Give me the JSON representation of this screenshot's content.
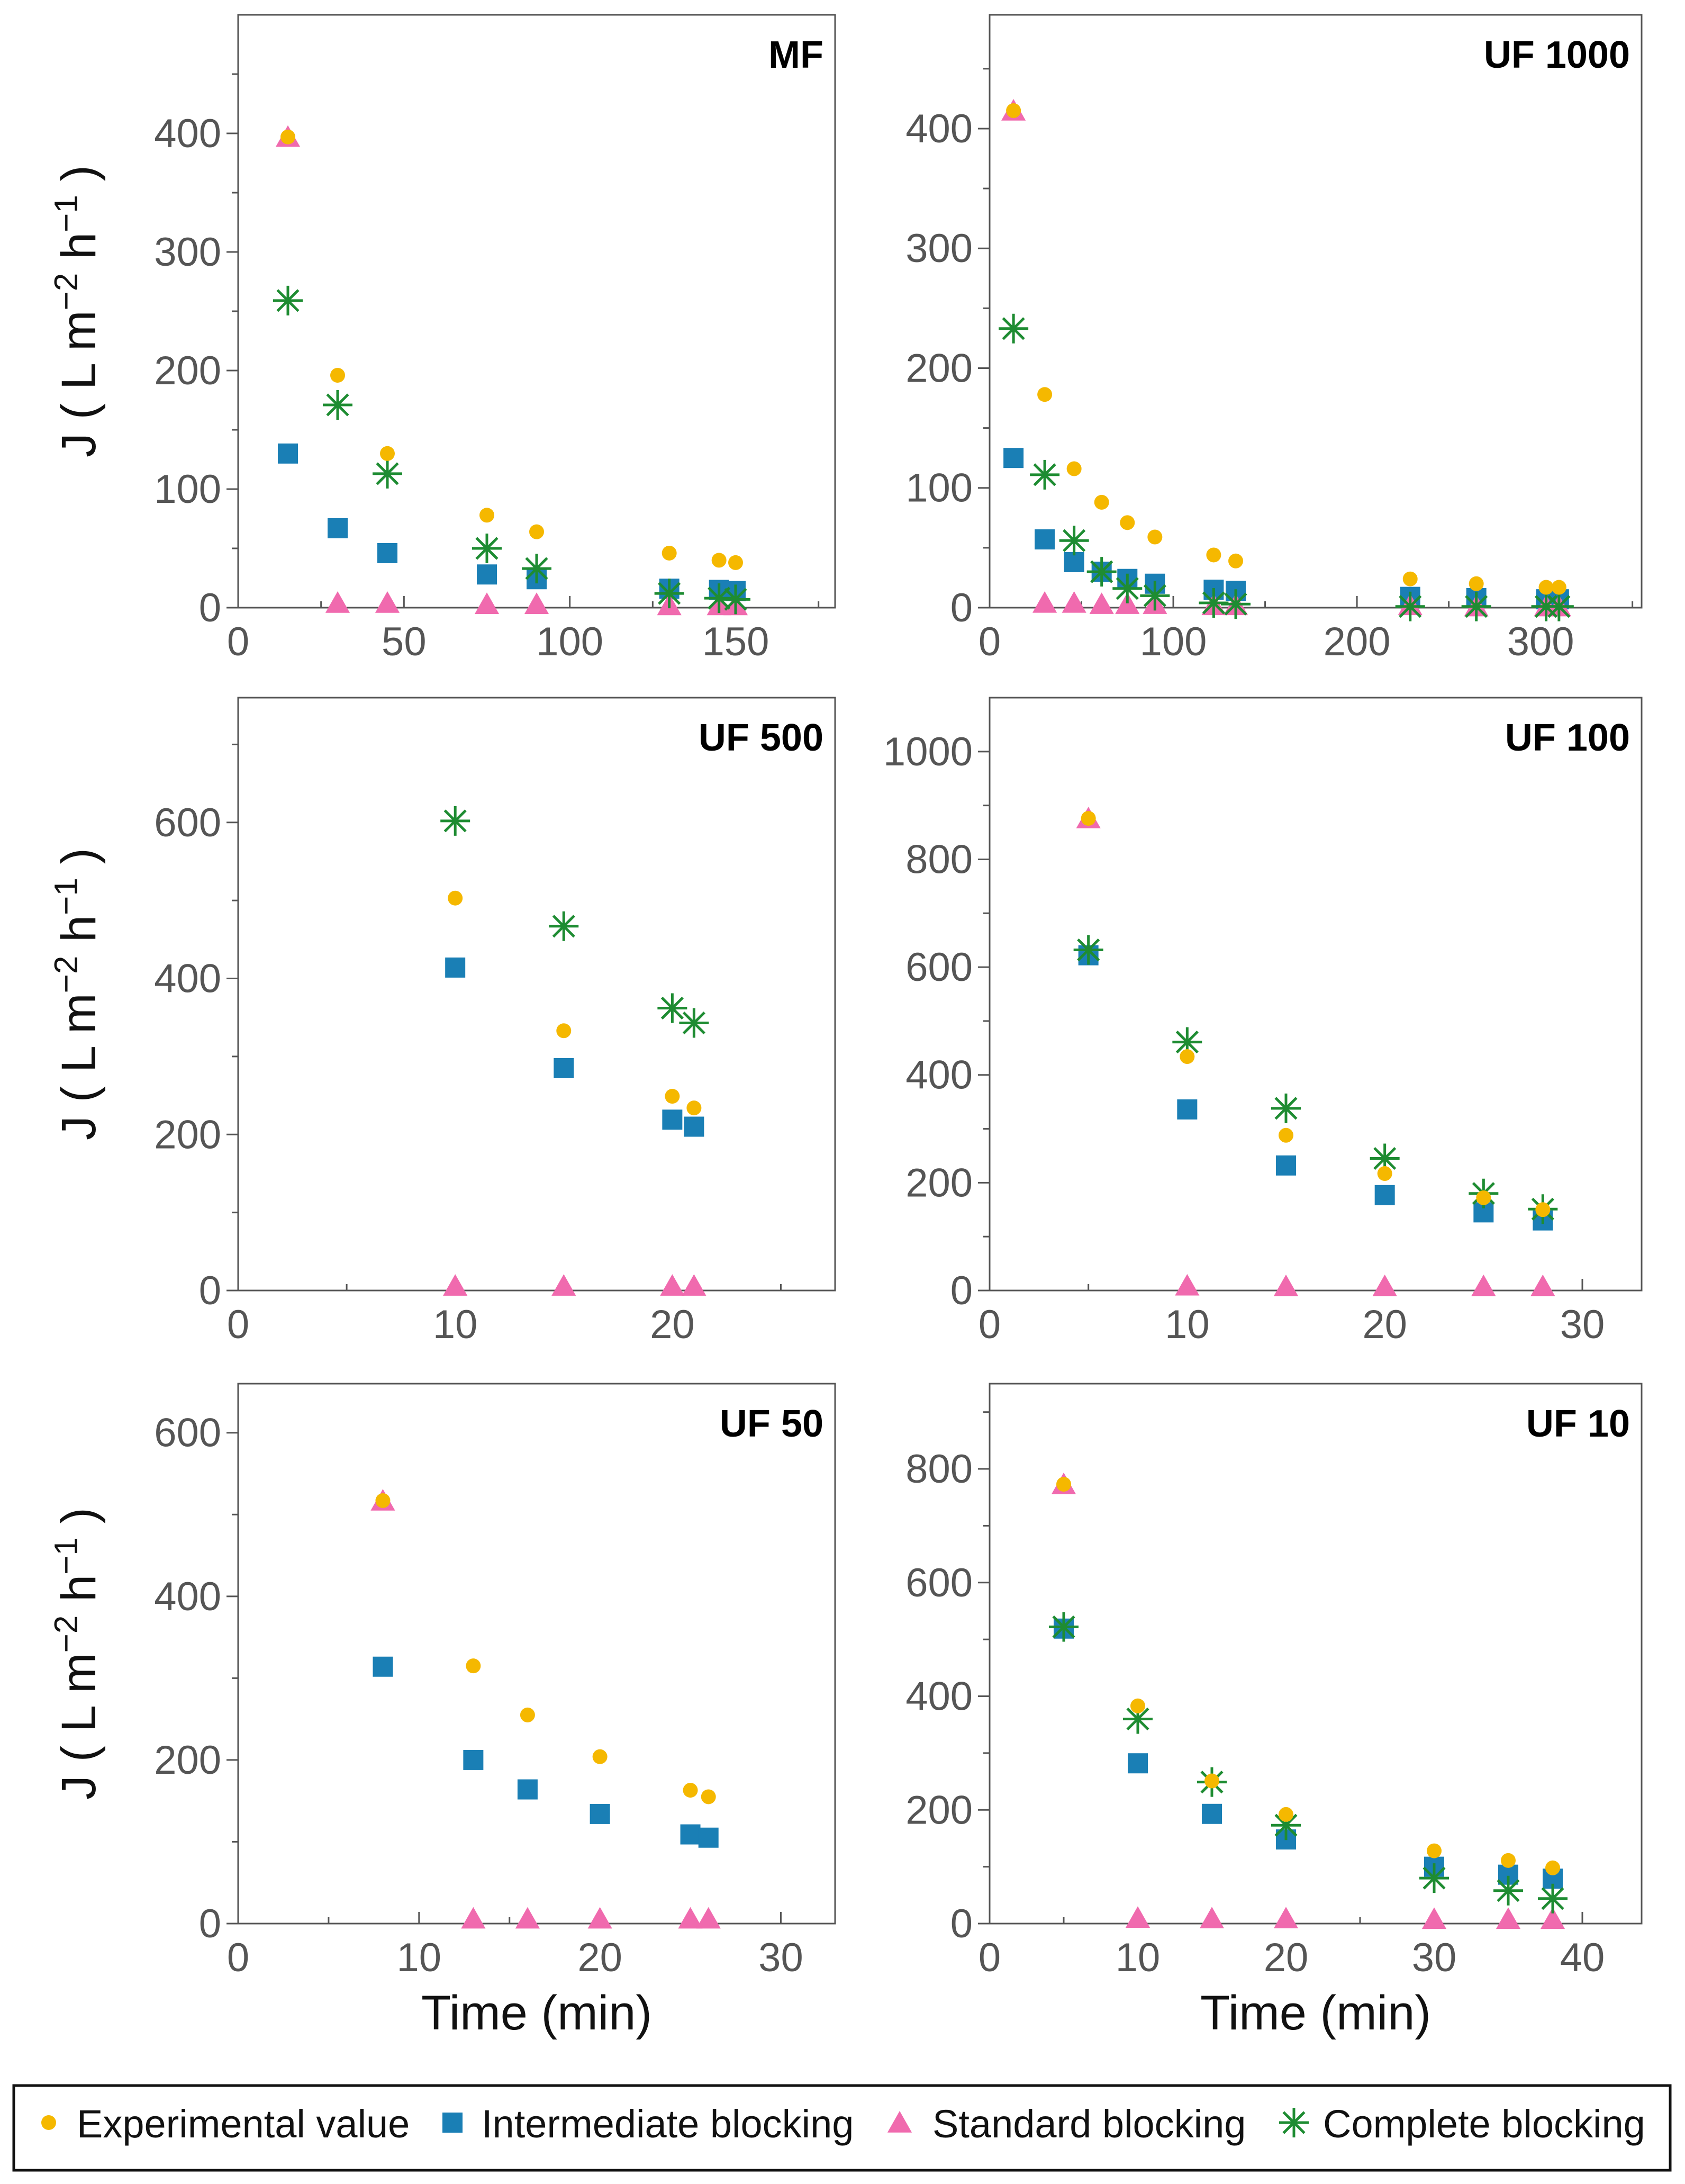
{
  "colors": {
    "experimental": "#F5B800",
    "intermediate": "#1A7FB5",
    "standard": "#F06AAE",
    "complete": "#1E8C32"
  },
  "legend": {
    "items": [
      {
        "key": "experimental",
        "label": "Experimental value",
        "marker": "circle"
      },
      {
        "key": "intermediate",
        "label": "Intermediate blocking",
        "marker": "square"
      },
      {
        "key": "standard",
        "label": "Standard blocking",
        "marker": "triangle"
      },
      {
        "key": "complete",
        "label": "Complete blocking",
        "marker": "asterisk"
      }
    ]
  },
  "chart_data": [
    {
      "type": "scatter",
      "title": "MF",
      "ylabel": "J ( L m−2 h−1 )",
      "xlabel": "",
      "xlim": [
        0,
        180
      ],
      "ylim": [
        0,
        500
      ],
      "xticks": [
        0,
        50,
        100,
        150
      ],
      "xminor": [
        25,
        75,
        125,
        175
      ],
      "yticks": [
        0,
        100,
        200,
        300,
        400
      ],
      "yminor": [
        50,
        150,
        250,
        350,
        450
      ],
      "series": [
        {
          "name": "Experimental value",
          "key": "experimental",
          "x": [
            15,
            30,
            45,
            75,
            90,
            130,
            145,
            150
          ],
          "y": [
            397,
            196,
            130,
            78,
            64,
            46,
            40,
            38
          ]
        },
        {
          "name": "Intermediate blocking",
          "key": "intermediate",
          "x": [
            15,
            30,
            45,
            75,
            90,
            130,
            145,
            150
          ],
          "y": [
            130,
            67,
            46,
            28,
            24,
            16,
            15,
            14
          ]
        },
        {
          "name": "Standard blocking",
          "key": "standard",
          "x": [
            15,
            30,
            45,
            75,
            90,
            130,
            145,
            150
          ],
          "y": [
            397,
            4,
            4,
            3,
            3,
            2,
            2,
            2
          ]
        },
        {
          "name": "Complete blocking",
          "key": "complete",
          "x": [
            15,
            30,
            45,
            75,
            90,
            130,
            145,
            150
          ],
          "y": [
            259,
            171,
            113,
            50,
            33,
            12,
            8,
            7
          ]
        }
      ]
    },
    {
      "type": "scatter",
      "title": "UF 1000",
      "ylabel": "",
      "xlabel": "",
      "xlim": [
        0,
        355
      ],
      "ylim": [
        0,
        495
      ],
      "xticks": [
        0,
        100,
        200,
        300
      ],
      "xminor": [
        50,
        150,
        250,
        350
      ],
      "yticks": [
        0,
        100,
        200,
        300,
        400
      ],
      "yminor": [
        50,
        150,
        250,
        350,
        450
      ],
      "series": [
        {
          "name": "Experimental value",
          "key": "experimental",
          "x": [
            13,
            30,
            46,
            61,
            75,
            90,
            122,
            134,
            229,
            265,
            303,
            310
          ],
          "y": [
            415,
            178,
            116,
            88,
            71,
            59,
            44,
            39,
            24,
            20,
            17,
            17
          ]
        },
        {
          "name": "Intermediate blocking",
          "key": "intermediate",
          "x": [
            13,
            30,
            46,
            61,
            75,
            90,
            122,
            134,
            229,
            265,
            303,
            310
          ],
          "y": [
            125,
            57,
            38,
            30,
            24,
            20,
            15,
            14,
            9,
            8,
            7,
            7
          ]
        },
        {
          "name": "Standard blocking",
          "key": "standard",
          "x": [
            13,
            30,
            46,
            61,
            75,
            90,
            122,
            134,
            229,
            265,
            303,
            310
          ],
          "y": [
            415,
            4,
            4,
            3,
            3,
            3,
            2,
            2,
            2,
            1,
            1,
            1
          ]
        },
        {
          "name": "Complete blocking",
          "key": "complete",
          "x": [
            13,
            30,
            46,
            61,
            75,
            90,
            122,
            134,
            229,
            265,
            303,
            310
          ],
          "y": [
            233,
            111,
            56,
            30,
            16,
            10,
            4,
            3,
            1,
            1,
            1,
            1
          ]
        }
      ]
    },
    {
      "type": "scatter",
      "title": "UF 500",
      "ylabel": "J ( L m−2 h−1 )",
      "xlabel": "",
      "xlim": [
        0,
        27.5
      ],
      "ylim": [
        0,
        760
      ],
      "xticks": [
        0,
        10,
        20
      ],
      "xminor": [
        5,
        15,
        25
      ],
      "yticks": [
        0,
        200,
        400,
        600
      ],
      "yminor": [
        100,
        300,
        500,
        700
      ],
      "series": [
        {
          "name": "Experimental value",
          "key": "experimental",
          "x": [
            10,
            15,
            20,
            21
          ],
          "y": [
            503,
            333,
            249,
            234
          ]
        },
        {
          "name": "Intermediate blocking",
          "key": "intermediate",
          "x": [
            10,
            15,
            20,
            21
          ],
          "y": [
            414,
            285,
            219,
            210
          ]
        },
        {
          "name": "Standard blocking",
          "key": "standard",
          "x": [
            10,
            15,
            20,
            21
          ],
          "y": [
            6,
            6,
            6,
            6
          ]
        },
        {
          "name": "Complete blocking",
          "key": "complete",
          "x": [
            10,
            15,
            20,
            21
          ],
          "y": [
            602,
            467,
            362,
            343
          ]
        }
      ]
    },
    {
      "type": "scatter",
      "title": "UF 100",
      "ylabel": "",
      "xlabel": "",
      "xlim": [
        0,
        33
      ],
      "ylim": [
        0,
        1100
      ],
      "xticks": [
        0,
        10,
        20,
        30
      ],
      "xminor": [
        5,
        15,
        25
      ],
      "yticks": [
        0,
        200,
        400,
        600,
        800,
        1000
      ],
      "yminor": [
        100,
        300,
        500,
        700,
        900
      ],
      "series": [
        {
          "name": "Experimental value",
          "key": "experimental",
          "x": [
            5,
            10,
            15,
            20,
            25,
            28
          ],
          "y": [
            876,
            434,
            288,
            217,
            172,
            150
          ]
        },
        {
          "name": "Intermediate blocking",
          "key": "intermediate",
          "x": [
            5,
            10,
            15,
            20,
            25,
            28
          ],
          "y": [
            622,
            336,
            232,
            177,
            145,
            130
          ]
        },
        {
          "name": "Standard blocking",
          "key": "standard",
          "x": [
            5,
            10,
            15,
            20,
            25,
            28
          ],
          "y": [
            876,
            9,
            8,
            8,
            8,
            8
          ]
        },
        {
          "name": "Complete blocking",
          "key": "complete",
          "x": [
            5,
            10,
            15,
            20,
            25,
            28
          ],
          "y": [
            632,
            461,
            338,
            245,
            180,
            151
          ]
        }
      ]
    },
    {
      "type": "scatter",
      "title": "UF 50",
      "ylabel": "J ( L m−2 h−1 )",
      "xlabel": "Time (min)",
      "xlim": [
        0,
        33
      ],
      "ylim": [
        0,
        660
      ],
      "xticks": [
        0,
        10,
        20,
        30
      ],
      "xminor": [
        5,
        15,
        25
      ],
      "yticks": [
        0,
        200,
        400,
        600
      ],
      "yminor": [
        100,
        300,
        500
      ],
      "series": [
        {
          "name": "Experimental value",
          "key": "experimental",
          "x": [
            8,
            13,
            16,
            20,
            25,
            26
          ],
          "y": [
            517,
            315,
            255,
            204,
            163,
            155
          ]
        },
        {
          "name": "Intermediate blocking",
          "key": "intermediate",
          "x": [
            8,
            13,
            16,
            20,
            25,
            26
          ],
          "y": [
            314,
            200,
            164,
            134,
            109,
            105
          ]
        },
        {
          "name": "Standard blocking",
          "key": "standard",
          "x": [
            8,
            13,
            16,
            20,
            25,
            26
          ],
          "y": [
            517,
            6,
            6,
            6,
            6,
            6
          ]
        },
        {
          "name": "Complete blocking",
          "key": "complete",
          "x": [],
          "y": []
        }
      ]
    },
    {
      "type": "scatter",
      "title": "UF 10",
      "ylabel": "",
      "xlabel": "Time (min)",
      "xlim": [
        0,
        44
      ],
      "ylim": [
        0,
        950
      ],
      "xticks": [
        0,
        10,
        20,
        30,
        40
      ],
      "xminor": [
        5,
        15,
        25,
        35
      ],
      "yticks": [
        0,
        200,
        400,
        600,
        800
      ],
      "yminor": [
        100,
        300,
        500,
        700,
        900
      ],
      "series": [
        {
          "name": "Experimental value",
          "key": "experimental",
          "x": [
            5,
            10,
            15,
            20,
            30,
            35,
            38
          ],
          "y": [
            773,
            383,
            251,
            192,
            128,
            111,
            98
          ]
        },
        {
          "name": "Intermediate blocking",
          "key": "intermediate",
          "x": [
            5,
            10,
            15,
            20,
            30,
            35,
            38
          ],
          "y": [
            519,
            282,
            193,
            148,
            100,
            86,
            79
          ]
        },
        {
          "name": "Standard blocking",
          "key": "standard",
          "x": [
            5,
            10,
            15,
            20,
            30,
            35,
            38
          ],
          "y": [
            773,
            10,
            9,
            9,
            8,
            8,
            8
          ]
        },
        {
          "name": "Complete blocking",
          "key": "complete",
          "x": [
            5,
            10,
            15,
            20,
            30,
            35,
            38
          ],
          "y": [
            522,
            360,
            249,
            173,
            80,
            58,
            44
          ]
        }
      ]
    }
  ]
}
